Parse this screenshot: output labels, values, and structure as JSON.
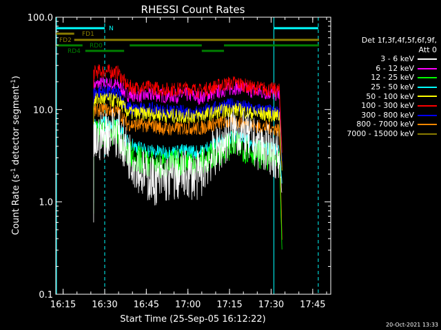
{
  "chart_data": {
    "type": "line",
    "title": "RHESSI Count Rates",
    "xlabel": "Start Time (25-Sep-05 16:12:22)",
    "ylabel_prefix": "Count Rate (s",
    "ylabel_sup": "-1",
    "ylabel_mid": " detector segment",
    "ylabel_sup2": "-1",
    "ylabel_suffix": ")",
    "yscale": "log",
    "ylim": [
      0.1,
      100.0
    ],
    "xlim": [
      "16:12:22",
      "17:51:30"
    ],
    "x_tick_labels": [
      "16:15",
      "16:30",
      "16:45",
      "17:00",
      "17:15",
      "17:30",
      "17:45"
    ],
    "y_tick_labels": [
      "0.1",
      "1.0",
      "10.0",
      "100.0"
    ],
    "grid": false,
    "legend_position": "right",
    "legend_header": [
      "Det 1f,3f,4f,5f,6f,9f,",
      "Att 0"
    ],
    "series": [
      {
        "name": "3 - 6 keV",
        "color": "#ffffff",
        "points": [
          [
            "16:26",
            "4.0"
          ],
          [
            "16:28",
            "5.0"
          ],
          [
            "16:30",
            "5.5"
          ],
          [
            "16:33",
            "6.0"
          ],
          [
            "16:35",
            "5.5"
          ],
          [
            "16:38",
            "3.5"
          ],
          [
            "16:41",
            "2.6"
          ],
          [
            "16:44",
            "2.0"
          ],
          [
            "16:48",
            "1.7"
          ],
          [
            "16:52",
            "1.8"
          ],
          [
            "16:56",
            "1.9"
          ],
          [
            "17:00",
            "2.0"
          ],
          [
            "17:04",
            "1.9"
          ],
          [
            "17:08",
            "3.0"
          ],
          [
            "17:12",
            "4.0"
          ],
          [
            "17:16",
            "6.0"
          ],
          [
            "17:19",
            "5.5"
          ],
          [
            "17:22",
            "4.8"
          ],
          [
            "17:26",
            "4.0"
          ],
          [
            "17:30",
            "3.6"
          ],
          [
            "17:33",
            "3.0"
          ],
          [
            "17:34",
            "1.2"
          ]
        ]
      },
      {
        "name": "6 - 12 keV",
        "color": "#ff00ff",
        "points": [
          [
            "16:26",
            "18.0"
          ],
          [
            "16:28",
            "19.0"
          ],
          [
            "16:30",
            "19.0"
          ],
          [
            "16:33",
            "18.5"
          ],
          [
            "16:35",
            "18.5"
          ],
          [
            "16:38",
            "14.5"
          ],
          [
            "16:41",
            "14.5"
          ],
          [
            "16:44",
            "14.0"
          ],
          [
            "16:48",
            "14.5"
          ],
          [
            "16:52",
            "14.0"
          ],
          [
            "16:56",
            "14.0"
          ],
          [
            "17:00",
            "14.5"
          ],
          [
            "17:04",
            "13.5"
          ],
          [
            "17:08",
            "14.5"
          ],
          [
            "17:12",
            "16.0"
          ],
          [
            "17:16",
            "17.0"
          ],
          [
            "17:19",
            "17.5"
          ],
          [
            "17:22",
            "16.0"
          ],
          [
            "17:26",
            "15.5"
          ],
          [
            "17:30",
            "15.0"
          ],
          [
            "17:33",
            "14.5"
          ],
          [
            "17:34",
            "2.0"
          ]
        ]
      },
      {
        "name": "12 - 25 keV",
        "color": "#00ff00",
        "points": [
          [
            "16:26",
            "5.0"
          ],
          [
            "16:28",
            "5.5"
          ],
          [
            "16:30",
            "5.5"
          ],
          [
            "16:33",
            "5.8"
          ],
          [
            "16:35",
            "5.2"
          ],
          [
            "16:38",
            "3.3"
          ],
          [
            "16:41",
            "3.0"
          ],
          [
            "16:44",
            "2.7"
          ],
          [
            "16:48",
            "2.5"
          ],
          [
            "16:52",
            "2.5"
          ],
          [
            "16:56",
            "2.6"
          ],
          [
            "17:00",
            "2.8"
          ],
          [
            "17:04",
            "2.6"
          ],
          [
            "17:08",
            "3.0"
          ],
          [
            "17:12",
            "3.6"
          ],
          [
            "17:16",
            "4.2"
          ],
          [
            "17:19",
            "4.0"
          ],
          [
            "17:22",
            "3.6"
          ],
          [
            "17:26",
            "3.3"
          ],
          [
            "17:30",
            "3.0"
          ],
          [
            "17:33",
            "2.7"
          ],
          [
            "17:34",
            "0.25"
          ]
        ]
      },
      {
        "name": "25 - 50 keV",
        "color": "#00ffff",
        "points": [
          [
            "16:26",
            "6.5"
          ],
          [
            "16:28",
            "7.0"
          ],
          [
            "16:30",
            "7.0"
          ],
          [
            "16:33",
            "7.0"
          ],
          [
            "16:35",
            "6.5"
          ],
          [
            "16:38",
            "4.5"
          ],
          [
            "16:41",
            "4.0"
          ],
          [
            "16:44",
            "3.7"
          ],
          [
            "16:48",
            "3.5"
          ],
          [
            "16:52",
            "3.4"
          ],
          [
            "16:56",
            "3.5"
          ],
          [
            "17:00",
            "3.6"
          ],
          [
            "17:04",
            "3.4"
          ],
          [
            "17:08",
            "4.0"
          ],
          [
            "17:12",
            "4.6"
          ],
          [
            "17:16",
            "5.0"
          ],
          [
            "17:19",
            "4.8"
          ],
          [
            "17:22",
            "4.4"
          ],
          [
            "17:26",
            "4.0"
          ],
          [
            "17:30",
            "3.8"
          ],
          [
            "17:33",
            "3.5"
          ],
          [
            "17:34",
            "1.5"
          ]
        ]
      },
      {
        "name": "50 - 100 keV",
        "color": "#ffff00",
        "points": [
          [
            "16:26",
            "12.5"
          ],
          [
            "16:28",
            "13.0"
          ],
          [
            "16:30",
            "13.0"
          ],
          [
            "16:33",
            "12.5"
          ],
          [
            "16:35",
            "12.5"
          ],
          [
            "16:38",
            "9.5"
          ],
          [
            "16:41",
            "9.0"
          ],
          [
            "16:44",
            "9.0"
          ],
          [
            "16:48",
            "9.0"
          ],
          [
            "16:52",
            "8.6"
          ],
          [
            "16:56",
            "8.5"
          ],
          [
            "17:00",
            "8.5"
          ],
          [
            "17:04",
            "8.5"
          ],
          [
            "17:08",
            "9.0"
          ],
          [
            "17:12",
            "9.5"
          ],
          [
            "17:16",
            "10.0"
          ],
          [
            "17:19",
            "9.8"
          ],
          [
            "17:22",
            "9.2"
          ],
          [
            "17:26",
            "9.0"
          ],
          [
            "17:30",
            "8.8"
          ],
          [
            "17:33",
            "8.5"
          ],
          [
            "17:34",
            "2.0"
          ]
        ]
      },
      {
        "name": "100 - 300 keV",
        "color": "#ff0000",
        "points": [
          [
            "16:26",
            "25.0"
          ],
          [
            "16:28",
            "26.0"
          ],
          [
            "16:30",
            "26.0"
          ],
          [
            "16:33",
            "25.5"
          ],
          [
            "16:35",
            "25.0"
          ],
          [
            "16:38",
            "18.0"
          ],
          [
            "16:41",
            "17.0"
          ],
          [
            "16:44",
            "17.5"
          ],
          [
            "16:48",
            "17.0"
          ],
          [
            "16:52",
            "16.5"
          ],
          [
            "16:56",
            "16.5"
          ],
          [
            "17:00",
            "17.0"
          ],
          [
            "17:04",
            "16.0"
          ],
          [
            "17:08",
            "17.0"
          ],
          [
            "17:12",
            "18.5"
          ],
          [
            "17:16",
            "19.5"
          ],
          [
            "17:19",
            "19.0"
          ],
          [
            "17:22",
            "17.5"
          ],
          [
            "17:26",
            "17.0"
          ],
          [
            "17:30",
            "16.5"
          ],
          [
            "17:33",
            "16.0"
          ],
          [
            "17:34",
            "3.0"
          ]
        ]
      },
      {
        "name": "300 - 800 keV",
        "color": "#0000ff",
        "points": [
          [
            "16:26",
            "15.0"
          ],
          [
            "16:28",
            "15.5"
          ],
          [
            "16:30",
            "15.5"
          ],
          [
            "16:33",
            "15.0"
          ],
          [
            "16:35",
            "15.0"
          ],
          [
            "16:38",
            "10.5"
          ],
          [
            "16:41",
            "10.0"
          ],
          [
            "16:44",
            "10.0"
          ],
          [
            "16:48",
            "10.0"
          ],
          [
            "16:52",
            "9.5"
          ],
          [
            "16:56",
            "9.3"
          ],
          [
            "17:00",
            "9.5"
          ],
          [
            "17:04",
            "9.3"
          ],
          [
            "17:08",
            "10.0"
          ],
          [
            "17:12",
            "10.8"
          ],
          [
            "17:16",
            "11.2"
          ],
          [
            "17:19",
            "11.0"
          ],
          [
            "17:22",
            "10.2"
          ],
          [
            "17:26",
            "9.8"
          ],
          [
            "17:30",
            "9.5"
          ],
          [
            "17:33",
            "9.0"
          ],
          [
            "17:34",
            "2.5"
          ]
        ]
      },
      {
        "name": "800 - 7000 keV",
        "color": "#ff8800",
        "points": [
          [
            "16:26",
            "9.5"
          ],
          [
            "16:28",
            "10.0"
          ],
          [
            "16:30",
            "10.0"
          ],
          [
            "16:33",
            "9.7"
          ],
          [
            "16:35",
            "9.5"
          ],
          [
            "16:38",
            "7.0"
          ],
          [
            "16:41",
            "6.8"
          ],
          [
            "16:44",
            "6.8"
          ],
          [
            "16:48",
            "6.6"
          ],
          [
            "16:52",
            "6.2"
          ],
          [
            "16:56",
            "6.2"
          ],
          [
            "17:00",
            "6.4"
          ],
          [
            "17:04",
            "6.2"
          ],
          [
            "17:08",
            "6.8"
          ],
          [
            "17:12",
            "7.2"
          ],
          [
            "17:16",
            "7.4"
          ],
          [
            "17:19",
            "7.2"
          ],
          [
            "17:22",
            "6.8"
          ],
          [
            "17:26",
            "6.5"
          ],
          [
            "17:30",
            "6.3"
          ],
          [
            "17:33",
            "6.0"
          ],
          [
            "17:34",
            "0.3"
          ]
        ]
      },
      {
        "name": "7000 - 15000 keV",
        "color": "#8b7d00",
        "points": []
      }
    ],
    "annotations": [
      {
        "label": "N",
        "color": "#00ffff",
        "segments": [
          [
            "16:12:22",
            "16:30"
          ],
          [
            "17:31",
            "17:47"
          ]
        ]
      },
      {
        "label": "FD1",
        "color": "#8b7d00",
        "segments": [
          [
            "16:12:22",
            "16:19"
          ]
        ]
      },
      {
        "label": "FD2",
        "color": "#8b7d00",
        "segments": [
          [
            "16:19",
            "17:51"
          ]
        ]
      },
      {
        "label": "RD0",
        "color": "#008000",
        "segments": [
          [
            "16:12:22",
            "16:22"
          ],
          [
            "16:39",
            "17:05"
          ],
          [
            "17:13",
            "17:51"
          ]
        ]
      },
      {
        "label": "RD4",
        "color": "#008000",
        "segments": [
          [
            "16:23",
            "16:37"
          ],
          [
            "17:05",
            "17:13"
          ]
        ]
      }
    ],
    "vertical_markers": [
      {
        "time": "16:12:22",
        "style": "solid",
        "color": "#00ffff"
      },
      {
        "time": "16:30",
        "style": "dashed",
        "color": "#00ffff"
      },
      {
        "time": "17:31",
        "style": "solid",
        "color": "#00ffff"
      },
      {
        "time": "17:47",
        "style": "dashed",
        "color": "#00ffff"
      }
    ]
  },
  "footer": {
    "timestamp": "20-Oct-2021 13:33"
  }
}
